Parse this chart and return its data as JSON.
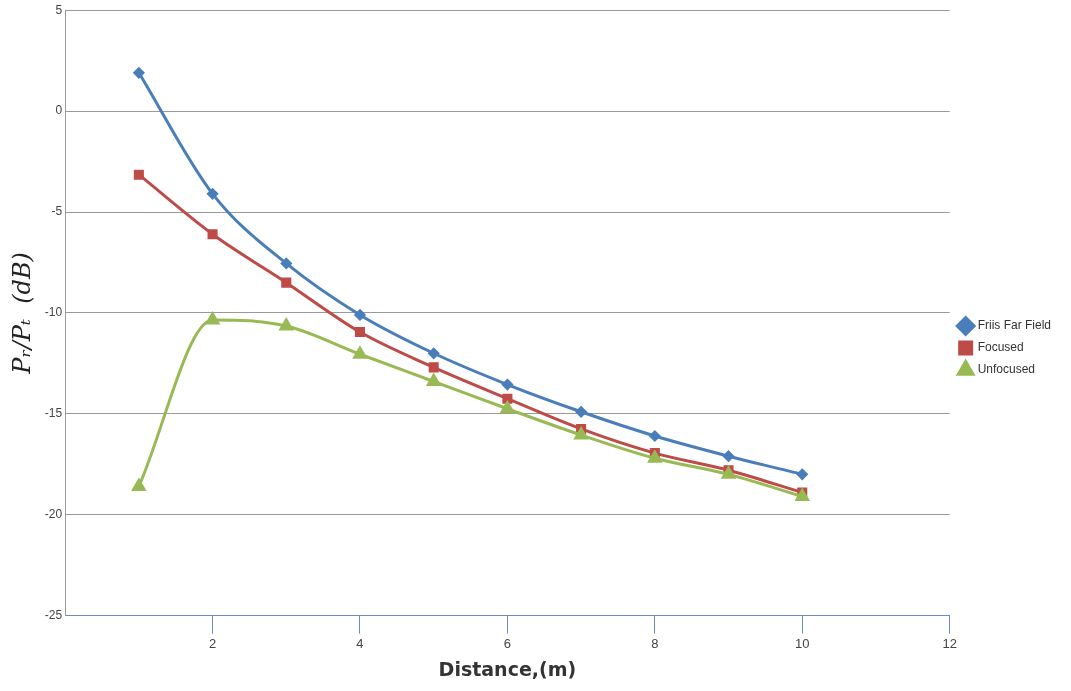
{
  "chart_data": {
    "type": "line",
    "xlabel": "Distance,(m)",
    "ylabel": "Pᵣ/Pₜ  (dB)",
    "xlim": [
      0,
      12
    ],
    "xticks": [
      2,
      4,
      6,
      8,
      10,
      12
    ],
    "ylim": [
      -25,
      5
    ],
    "yticks": [
      -25,
      -20,
      -15,
      -10,
      -5,
      0,
      5
    ],
    "grid": "y",
    "legend": "right",
    "line_style": "solid",
    "series": [
      {
        "name": "Friis Far Field",
        "color": "#4a7ebb",
        "marker": "diamond",
        "x": [
          1,
          2,
          3,
          4,
          5,
          6,
          7,
          8,
          9,
          10
        ],
        "values": [
          1.9,
          -4.1,
          -7.55,
          -10.1,
          -12,
          -13.55,
          -14.9,
          -16.1,
          -17.1,
          -18
        ]
      },
      {
        "name": "Focused",
        "color": "#be4b48",
        "marker": "square",
        "x": [
          1,
          2,
          3,
          4,
          5,
          6,
          7,
          8,
          9,
          10
        ],
        "values": [
          -3.15,
          -6.1,
          -8.5,
          -10.95,
          -12.7,
          -14.25,
          -15.75,
          -16.95,
          -17.8,
          -18.9
        ]
      },
      {
        "name": "Unfocused",
        "color": "#98b954",
        "marker": "triangle",
        "x": [
          1,
          2,
          3,
          4,
          5,
          6,
          7,
          8,
          9,
          10
        ],
        "values": [
          -18.6,
          -10.35,
          -10.65,
          -12.05,
          -13.4,
          -14.75,
          -16.05,
          -17.2,
          -18,
          -19.1
        ]
      }
    ]
  }
}
